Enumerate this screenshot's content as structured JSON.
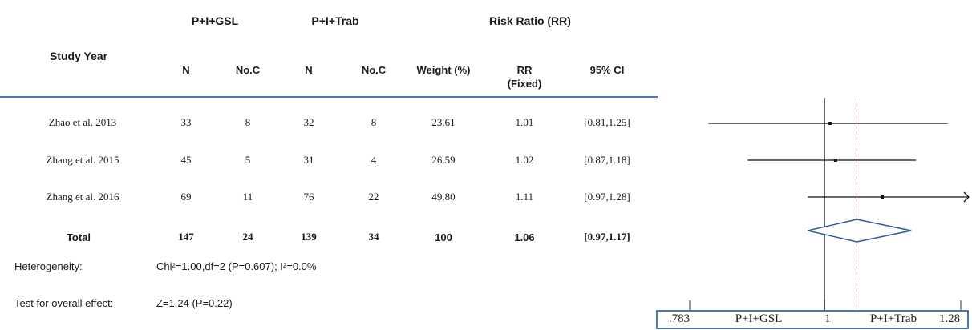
{
  "header": {
    "study_col": "Study Year",
    "group1": "P+I+GSL",
    "group2": "P+I+Trab",
    "risk_ratio": "Risk Ratio (RR)",
    "sub": {
      "n1": "N",
      "noc1": "No.C",
      "n2": "N",
      "noc2": "No.C",
      "weight": "Weight (%)",
      "rr_line1": "RR",
      "rr_line2": "(Fixed)",
      "ci": "95% CI"
    }
  },
  "rows": [
    {
      "study": "Zhao et al. 2013",
      "n1": "33",
      "c1": "8",
      "n2": "32",
      "c2": "8",
      "weight": "23.61",
      "rr": "1.01",
      "ci": "[0.81,1.25]"
    },
    {
      "study": "Zhang et al. 2015",
      "n1": "45",
      "c1": "5",
      "n2": "31",
      "c2": "4",
      "weight": "26.59",
      "rr": "1.02",
      "ci": "[0.87,1.18]"
    },
    {
      "study": "Zhang et al. 2016",
      "n1": "69",
      "c1": "11",
      "n2": "76",
      "c2": "22",
      "weight": "49.80",
      "rr": "1.11",
      "ci": "[0.97,1.28]"
    }
  ],
  "total": {
    "label": "Total",
    "n1": "147",
    "c1": "24",
    "n2": "139",
    "c2": "34",
    "weight": "100",
    "rr": "1.06",
    "ci": "[0.97,1.17]"
  },
  "heterogeneity": {
    "label": "Heterogeneity:",
    "value": "Chi²=1.00,df=2 (P=0.607); I²=0.0%"
  },
  "overall_effect": {
    "label": "Test for overall effect:",
    "value": "Z=1.24  (P=0.22)"
  },
  "axis": {
    "min_label": ".783",
    "left_label": "P+I+GSL",
    "null_label": "1",
    "right_label": "P+I+Trab",
    "max_label": "1.28"
  },
  "colors": {
    "rule": "#4a78b5",
    "diamond": "#2a5aa8",
    "null_line": "#444444",
    "pooled_line": "#e08a8a"
  },
  "chart_data": {
    "type": "forest",
    "x_scale": "log",
    "xlim": [
      0.783,
      1.28
    ],
    "null_value": 1,
    "studies": [
      {
        "name": "Zhao et al. 2013",
        "rr": 1.01,
        "lower": 0.81,
        "upper": 1.25,
        "weight": 23.61
      },
      {
        "name": "Zhang et al. 2015",
        "rr": 1.02,
        "lower": 0.87,
        "upper": 1.18,
        "weight": 26.59
      },
      {
        "name": "Zhang et al. 2016",
        "rr": 1.11,
        "lower": 0.97,
        "upper": 1.28,
        "weight": 49.8
      }
    ],
    "pooled": {
      "rr": 1.06,
      "lower": 0.97,
      "upper": 1.17
    }
  }
}
